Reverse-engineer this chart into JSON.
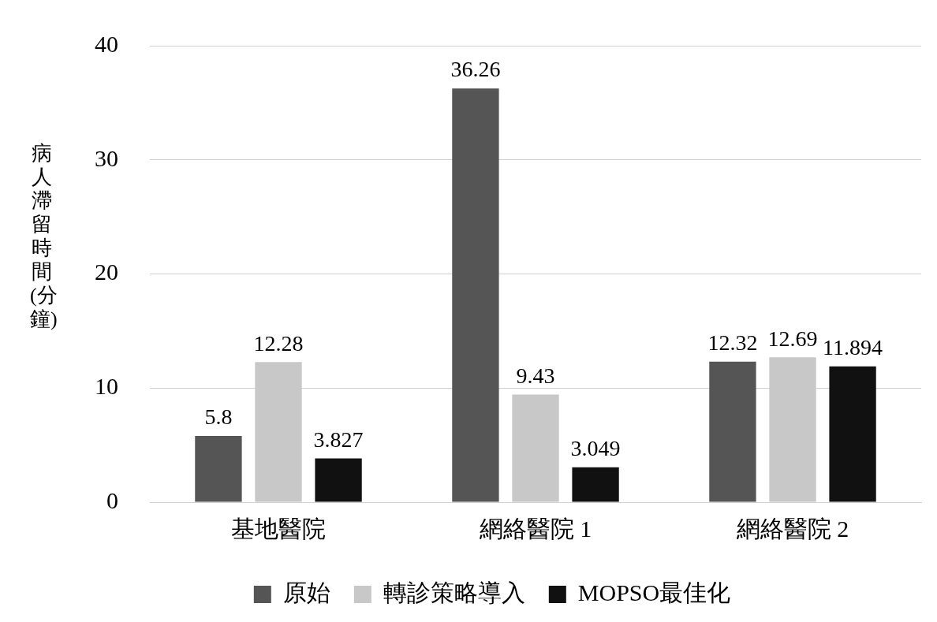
{
  "chart_data": {
    "type": "bar",
    "ylabel": "病人滯留時間(分鐘)",
    "categories": [
      "基地醫院",
      "網絡醫院 1",
      "網絡醫院 2"
    ],
    "series": [
      {
        "name": "原始",
        "color": "#555555",
        "values": [
          5.8,
          36.26,
          12.32
        ]
      },
      {
        "name": "轉診策略導入",
        "color": "#c8c8c8",
        "values": [
          12.28,
          9.43,
          12.69
        ]
      },
      {
        "name": "MOPSO最佳化",
        "color": "#111111",
        "values": [
          3.827,
          3.049,
          11.894
        ]
      }
    ],
    "ylim": [
      0,
      40
    ],
    "yticks": [
      0,
      10,
      20,
      30,
      40
    ],
    "grid": "y",
    "legend": "bottom",
    "data_labels": true
  }
}
